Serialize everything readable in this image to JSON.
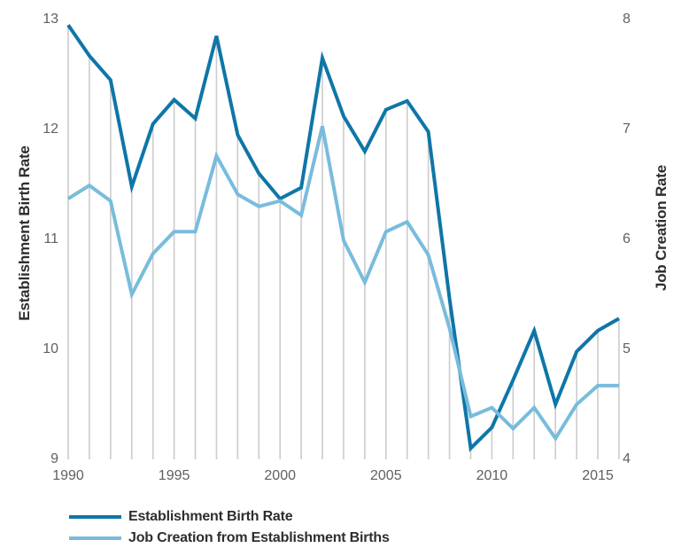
{
  "chart_data": {
    "type": "line",
    "x": [
      1990,
      1991,
      1992,
      1993,
      1994,
      1995,
      1996,
      1997,
      1998,
      1999,
      2000,
      2001,
      2002,
      2003,
      2004,
      2005,
      2006,
      2007,
      2008,
      2009,
      2010,
      2011,
      2012,
      2013,
      2014,
      2015,
      2016
    ],
    "x_tick_labels": [
      "1990",
      "1995",
      "2000",
      "2005",
      "2010",
      "2015"
    ],
    "left_axis": {
      "label": "Establishment Birth Rate",
      "ticks": [
        "13",
        "12",
        "11",
        "10",
        "9"
      ],
      "range": [
        9,
        13
      ]
    },
    "right_axis": {
      "label": "Job Creation Rate",
      "ticks": [
        "8",
        "7",
        "6",
        "5",
        "4"
      ],
      "range": [
        4,
        8
      ]
    },
    "series": [
      {
        "name": "Establishment Birth Rate",
        "axis": "left",
        "color": "#0e76a8",
        "values": [
          12.95,
          12.67,
          12.45,
          11.48,
          12.05,
          12.27,
          12.1,
          12.85,
          11.95,
          11.6,
          11.37,
          11.47,
          12.65,
          12.12,
          11.8,
          12.18,
          12.26,
          11.98,
          10.46,
          9.1,
          9.29,
          9.72,
          10.17,
          9.5,
          9.98,
          10.17,
          10.28
        ]
      },
      {
        "name": "Job Creation from Establishment Births",
        "axis": "right",
        "color": "#78bcdc",
        "values": [
          6.37,
          6.49,
          6.35,
          5.5,
          5.87,
          6.07,
          6.07,
          6.76,
          6.41,
          6.3,
          6.35,
          6.22,
          7.03,
          5.99,
          5.61,
          6.07,
          6.16,
          5.86,
          5.19,
          4.39,
          4.47,
          4.28,
          4.47,
          4.19,
          4.5,
          4.67,
          4.67
        ]
      }
    ],
    "gridlines": "vertical-stems-to-first-series",
    "legend_position": "bottom-left"
  },
  "legend": {
    "items": [
      {
        "label": "Establishment Birth Rate",
        "color": "#0e76a8"
      },
      {
        "label": "Job Creation from Establishment Births",
        "color": "#78bcdc"
      }
    ]
  },
  "colors": {
    "stem": "#cccccc",
    "tick_text": "#5f6062",
    "axis_title_text": "#2e2e30",
    "background": "#ffffff"
  }
}
